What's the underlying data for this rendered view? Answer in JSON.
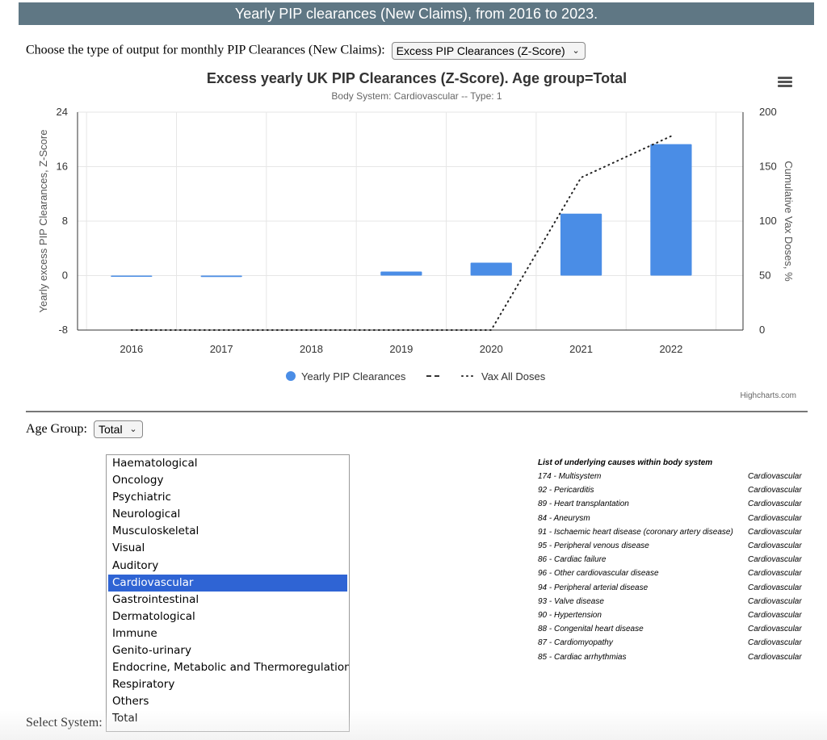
{
  "header": {
    "title": "Yearly PIP clearances (New Claims), from 2016 to 2023."
  },
  "output_type": {
    "label": "Choose the type of output for monthly PIP Clearances (New Claims):",
    "selected": "Excess PIP Clearances (Z-Score)"
  },
  "chart_data": {
    "type": "bar",
    "title": "Excess yearly UK PIP Clearances (Z-Score). Age group=Total",
    "subtitle": "Body System: Cardiovascular -- Type: 1",
    "categories": [
      "2016",
      "2017",
      "2018",
      "2019",
      "2020",
      "2021",
      "2022"
    ],
    "ylabel": "Yearly excess PIP Clearances, Z-Score",
    "y2label": "Cumulative Vax Doses, %",
    "ylim": [
      -8,
      24
    ],
    "y_ticks": [
      "24",
      "16",
      "8",
      "0",
      "-8"
    ],
    "y2lim": [
      0,
      200
    ],
    "y2_ticks": [
      "200",
      "150",
      "100",
      "50",
      "0"
    ],
    "series": [
      {
        "name": "Yearly PIP Clearances",
        "type": "column",
        "axis": "left",
        "color": "#4a8de6",
        "values": [
          -0.1,
          -0.2,
          0.0,
          0.6,
          1.9,
          9.1,
          19.3
        ]
      },
      {
        "name": "Vax All Doses",
        "type": "line",
        "axis": "right",
        "dash": "dotted",
        "color": "#222222",
        "values": [
          0,
          0,
          0,
          0,
          0,
          140,
          178
        ]
      }
    ],
    "legend_position": "bottom",
    "credits": "Highcharts.com",
    "grid": true
  },
  "age_group": {
    "label": "Age Group:",
    "selected": "Total"
  },
  "systems": {
    "label": "Select System:",
    "selected": "Cardiovascular",
    "options": [
      "Haematological",
      "Oncology",
      "Psychiatric",
      "Neurological",
      "Musculoskeletal",
      "Visual",
      "Auditory",
      "Cardiovascular",
      "Gastrointestinal",
      "Dermatological",
      "Immune",
      "Genito-urinary",
      "Endocrine, Metabolic and Thermoregulation",
      "Respiratory",
      "Others",
      "Total"
    ]
  },
  "causes": {
    "title": "List of underlying causes within body system",
    "rows": [
      [
        "174 - Multisystem",
        "Cardiovascular"
      ],
      [
        "92 - Pericarditis",
        "Cardiovascular"
      ],
      [
        "89 - Heart transplantation",
        "Cardiovascular"
      ],
      [
        "84 - Aneurysm",
        "Cardiovascular"
      ],
      [
        "91 - Ischaemic heart disease (coronary artery disease)",
        "Cardiovascular"
      ],
      [
        "95 - Peripheral venous disease",
        "Cardiovascular"
      ],
      [
        "86 - Cardiac failure",
        "Cardiovascular"
      ],
      [
        "96 - Other cardiovascular disease",
        "Cardiovascular"
      ],
      [
        "94 - Peripheral arterial disease",
        "Cardiovascular"
      ],
      [
        "93 - Valve disease",
        "Cardiovascular"
      ],
      [
        "90 - Hypertension",
        "Cardiovascular"
      ],
      [
        "88 - Congenital heart disease",
        "Cardiovascular"
      ],
      [
        "87 - Cardiomyopathy",
        "Cardiovascular"
      ],
      [
        "85 - Cardiac arrhythmias",
        "Cardiovascular"
      ]
    ]
  }
}
